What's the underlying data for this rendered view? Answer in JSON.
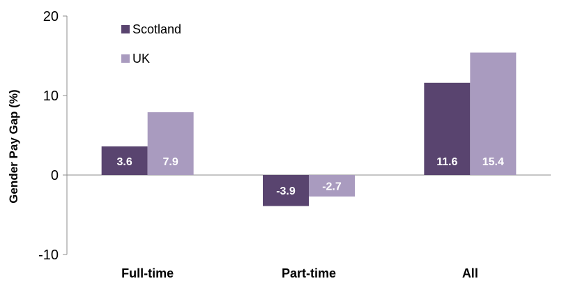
{
  "chart_data": {
    "type": "bar",
    "categories": [
      "Full-time",
      "Part-time",
      "All"
    ],
    "series": [
      {
        "name": "Scotland",
        "values": [
          3.6,
          -3.9,
          11.6
        ],
        "color": "#59446f"
      },
      {
        "name": "UK",
        "values": [
          7.9,
          -2.7,
          15.4
        ],
        "color": "#a99bbf"
      }
    ],
    "data_labels": [
      [
        "3.6",
        "-3.9",
        "11.6"
      ],
      [
        "7.9",
        "-2.7",
        "15.4"
      ]
    ],
    "ylabel": "Gender Pay Gap (%)",
    "ylim": [
      -10,
      20
    ],
    "yticks": [
      -10,
      0,
      10,
      20
    ],
    "ytick_labels": [
      "-10",
      "0",
      "10",
      "20"
    ],
    "grid": false,
    "legend_position": "top-left"
  }
}
